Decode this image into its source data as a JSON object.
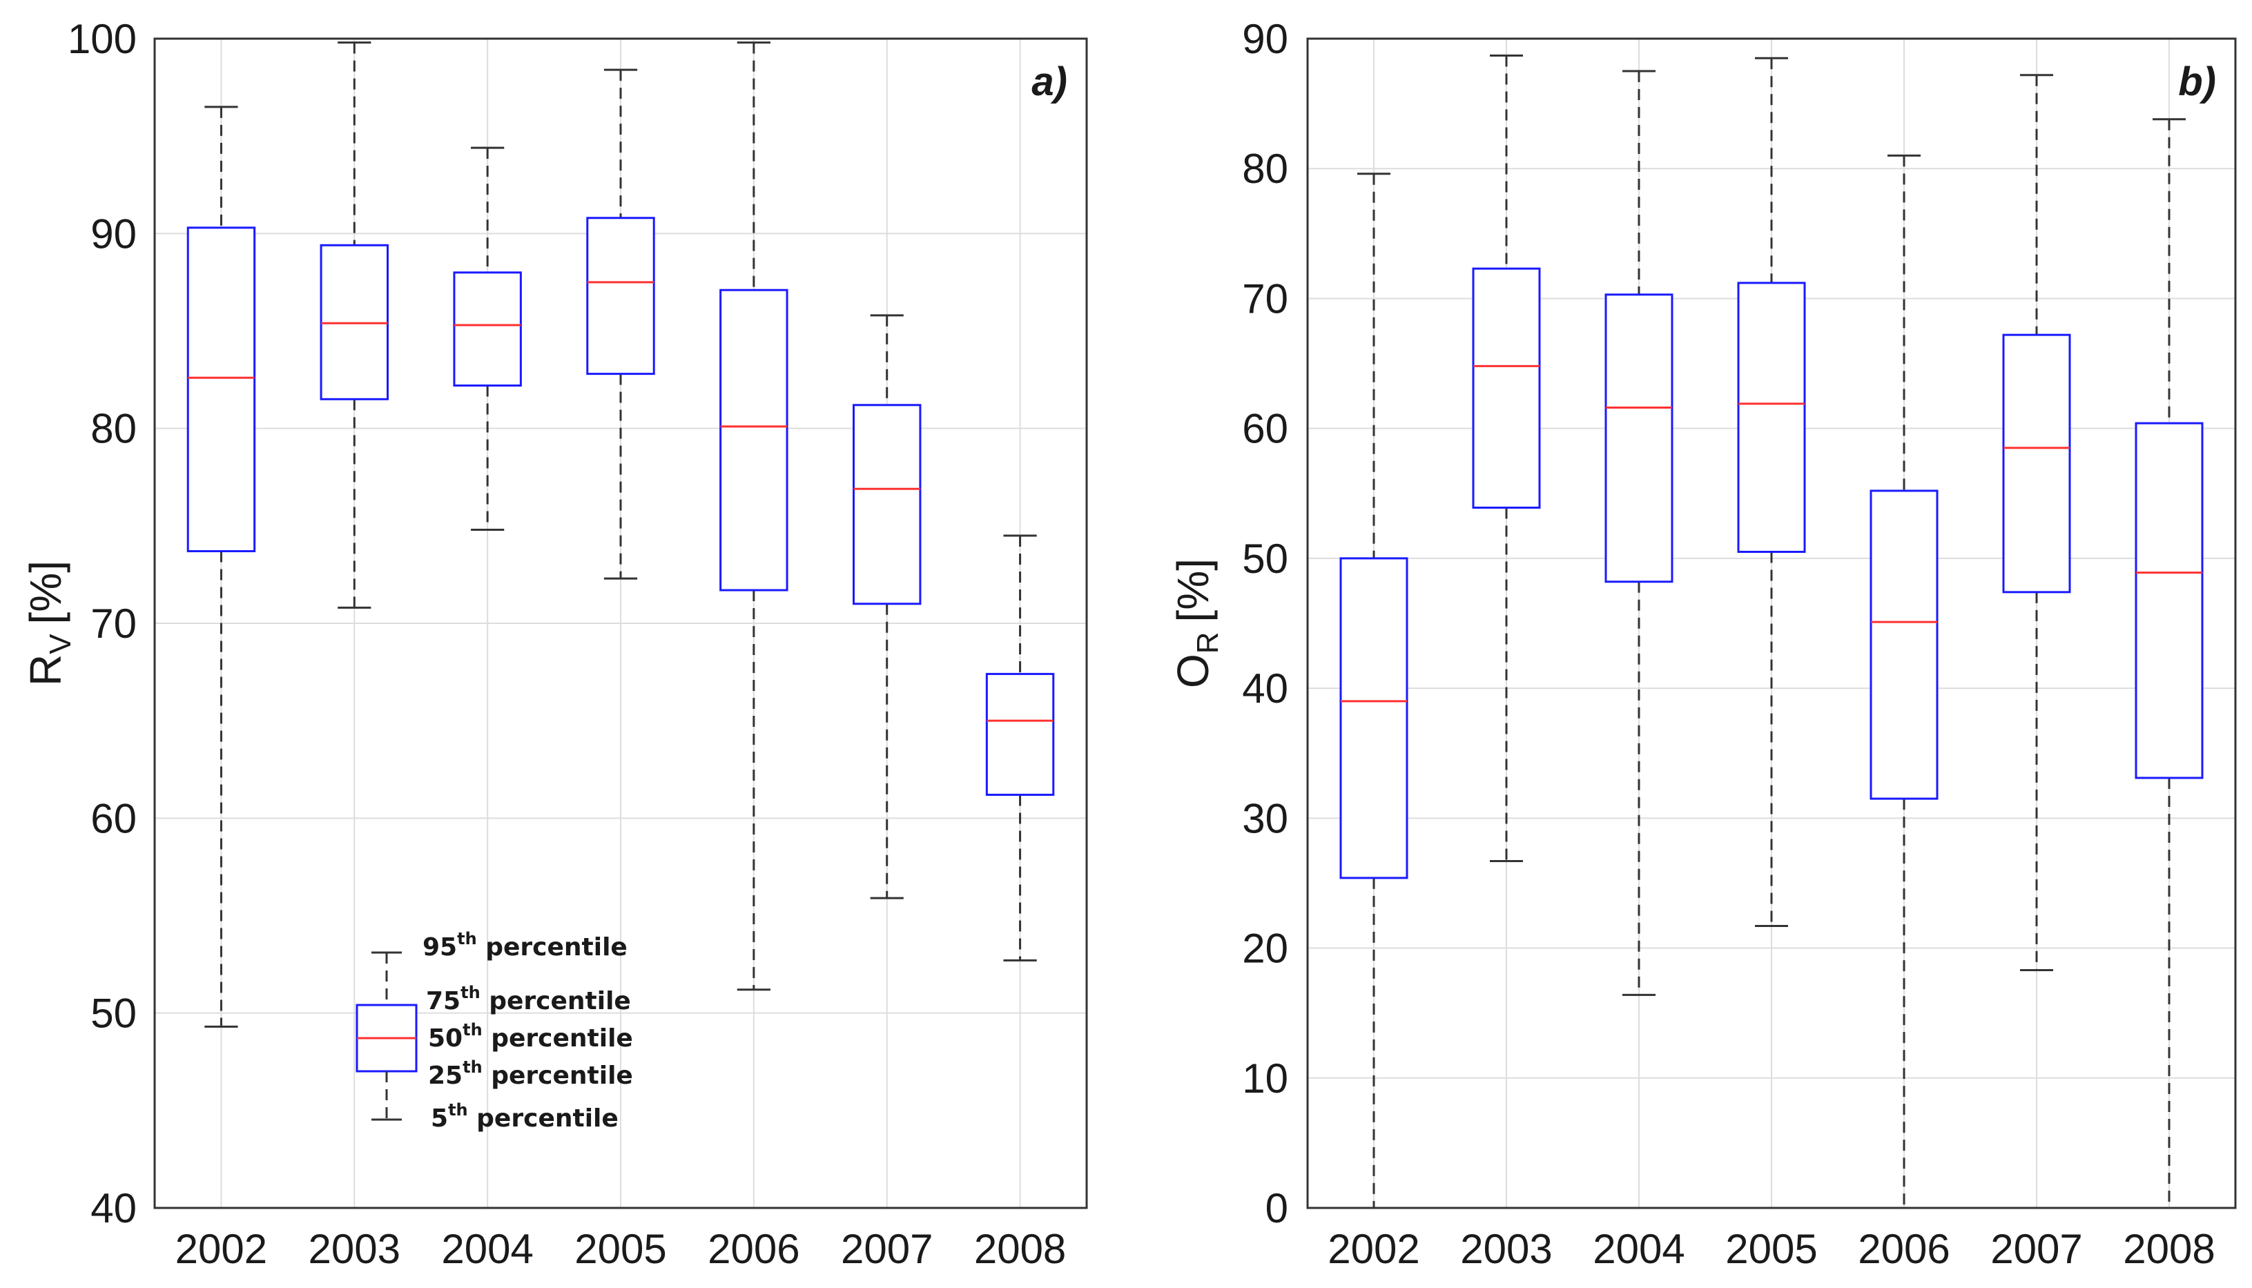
{
  "chart_data": [
    {
      "type": "boxplot",
      "panel_label": "a)",
      "ylabel": "R",
      "ylabel_sub": "V",
      "ylabel_unit": "[%]",
      "ylim": [
        40,
        100
      ],
      "yticks": [
        40,
        50,
        60,
        70,
        80,
        90,
        100
      ],
      "grid": true,
      "categories": [
        "2002",
        "2003",
        "2004",
        "2005",
        "2006",
        "2007",
        "2008"
      ],
      "boxes": [
        {
          "year": "2002",
          "p5": 49.3,
          "p25": 73.7,
          "p50": 82.6,
          "p75": 90.3,
          "p95": 96.5
        },
        {
          "year": "2003",
          "p5": 70.8,
          "p25": 81.5,
          "p50": 85.4,
          "p75": 89.4,
          "p95": 99.8
        },
        {
          "year": "2004",
          "p5": 74.8,
          "p25": 82.2,
          "p50": 85.3,
          "p75": 88.0,
          "p95": 94.4
        },
        {
          "year": "2005",
          "p5": 72.3,
          "p25": 82.8,
          "p50": 87.5,
          "p75": 90.8,
          "p95": 98.4
        },
        {
          "year": "2006",
          "p5": 51.2,
          "p25": 71.7,
          "p50": 80.1,
          "p75": 87.1,
          "p95": 99.8
        },
        {
          "year": "2007",
          "p5": 55.9,
          "p25": 71.0,
          "p50": 76.9,
          "p75": 81.2,
          "p95": 85.8
        },
        {
          "year": "2008",
          "p5": 52.7,
          "p25": 61.2,
          "p50": 65.0,
          "p75": 67.4,
          "p95": 74.5
        }
      ],
      "legend": {
        "placement": "bottom-left",
        "entries": [
          {
            "num": "95",
            "sup": "th",
            "text": " percentile"
          },
          {
            "num": "75",
            "sup": "th",
            "text": " percentile"
          },
          {
            "num": "50",
            "sup": "th",
            "text": " percentile"
          },
          {
            "num": "25",
            "sup": "th",
            "text": " percentile"
          },
          {
            "num": "5",
            "sup": "th",
            "text": " percentile"
          }
        ]
      }
    },
    {
      "type": "boxplot",
      "panel_label": "b)",
      "ylabel": "O",
      "ylabel_sub": "R",
      "ylabel_unit": "[%]",
      "ylim": [
        0,
        90
      ],
      "yticks": [
        0,
        10,
        20,
        30,
        40,
        50,
        60,
        70,
        80,
        90
      ],
      "grid": true,
      "categories": [
        "2002",
        "2003",
        "2004",
        "2005",
        "2006",
        "2007",
        "2008"
      ],
      "boxes": [
        {
          "year": "2002",
          "p5": 0.0,
          "p25": 25.4,
          "p50": 39.0,
          "p75": 50.0,
          "p95": 79.6
        },
        {
          "year": "2003",
          "p5": 26.7,
          "p25": 53.9,
          "p50": 64.8,
          "p75": 72.3,
          "p95": 88.7
        },
        {
          "year": "2004",
          "p5": 16.4,
          "p25": 48.2,
          "p50": 61.6,
          "p75": 70.3,
          "p95": 87.5
        },
        {
          "year": "2005",
          "p5": 21.7,
          "p25": 50.5,
          "p50": 61.9,
          "p75": 71.2,
          "p95": 88.5
        },
        {
          "year": "2006",
          "p5": 0.0,
          "p25": 31.5,
          "p50": 45.1,
          "p75": 55.2,
          "p95": 81.0
        },
        {
          "year": "2007",
          "p5": 18.3,
          "p25": 47.4,
          "p50": 58.5,
          "p75": 67.2,
          "p95": 87.2
        },
        {
          "year": "2008",
          "p5": 0.0,
          "p25": 33.1,
          "p50": 48.9,
          "p75": 60.4,
          "p95": 83.8
        }
      ]
    }
  ],
  "colors": {
    "box": "#1a1aff",
    "median": "#ff3030",
    "whisker": "#333333",
    "grid": "#dddddd",
    "axis": "#333333"
  }
}
